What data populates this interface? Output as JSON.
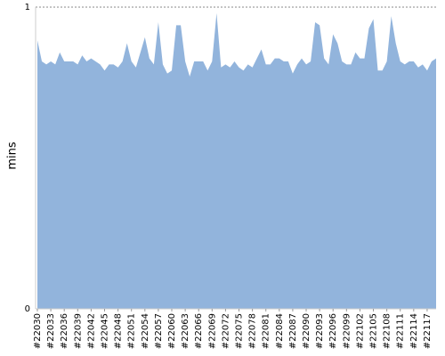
{
  "chart_data": {
    "type": "area",
    "y_label": "mins",
    "color": "#92b4dc",
    "categories": [
      "#22030",
      null,
      null,
      "#22033",
      null,
      null,
      "#22036",
      null,
      null,
      "#22039",
      null,
      null,
      "#22042",
      null,
      null,
      "#22045",
      null,
      null,
      "#22048",
      null,
      null,
      "#22051",
      null,
      null,
      "#22054",
      null,
      null,
      "#22057",
      null,
      null,
      "#22060",
      null,
      null,
      "#22063",
      null,
      null,
      "#22066",
      null,
      null,
      "#22069",
      null,
      null,
      "#22072",
      null,
      null,
      "#22075",
      null,
      null,
      "#22078",
      null,
      null,
      "#22081",
      null,
      null,
      "#22084",
      null,
      null,
      "#22087",
      null,
      null,
      "#22090",
      null,
      null,
      "#22093",
      null,
      null,
      "#22096",
      null,
      null,
      "#22099",
      null,
      null,
      "#22102",
      null,
      null,
      "#22105",
      null,
      null,
      "#22108",
      null,
      null,
      "#22111",
      null,
      null,
      "#22114",
      null,
      null,
      "#22117",
      null,
      null
    ],
    "values": [
      0.89,
      0.82,
      0.81,
      0.82,
      0.81,
      0.85,
      0.82,
      0.82,
      0.82,
      0.81,
      0.84,
      0.82,
      0.83,
      0.82,
      0.81,
      0.79,
      0.81,
      0.81,
      0.8,
      0.82,
      0.88,
      0.82,
      0.8,
      0.85,
      0.9,
      0.83,
      0.81,
      0.95,
      0.81,
      0.78,
      0.79,
      0.94,
      0.94,
      0.82,
      0.77,
      0.82,
      0.82,
      0.82,
      0.79,
      0.82,
      0.98,
      0.8,
      0.81,
      0.8,
      0.82,
      0.8,
      0.79,
      0.81,
      0.8,
      0.83,
      0.86,
      0.81,
      0.81,
      0.83,
      0.83,
      0.82,
      0.82,
      0.78,
      0.81,
      0.83,
      0.81,
      0.82,
      0.95,
      0.94,
      0.83,
      0.81,
      0.91,
      0.88,
      0.82,
      0.81,
      0.81,
      0.85,
      0.83,
      0.83,
      0.93,
      0.96,
      0.79,
      0.79,
      0.82,
      0.97,
      0.88,
      0.82,
      0.81,
      0.82,
      0.82,
      0.8,
      0.81,
      0.79,
      0.82,
      0.83
    ],
    "ylim": [
      0,
      1
    ],
    "yticks": [
      0,
      1
    ],
    "grid": true
  }
}
